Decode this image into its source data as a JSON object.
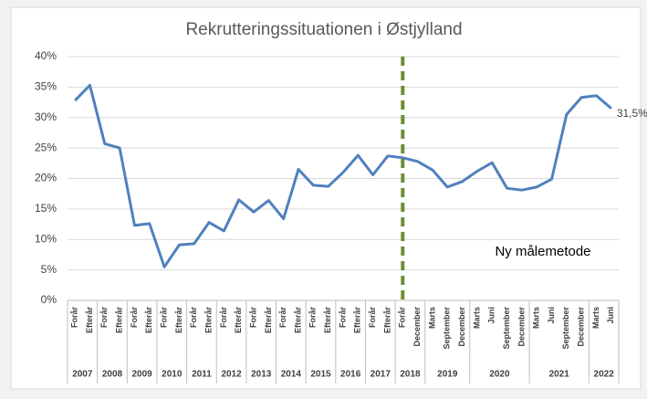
{
  "chart_data": {
    "type": "line",
    "title": "Rekrutteringssituationen i Østjylland",
    "groups": [
      {
        "name": "2007",
        "categories": [
          "Forår",
          "Efterår"
        ]
      },
      {
        "name": "2008",
        "categories": [
          "Forår",
          "Efterår"
        ]
      },
      {
        "name": "2009",
        "categories": [
          "Forår",
          "Efterår"
        ]
      },
      {
        "name": "2010",
        "categories": [
          "Forår",
          "Efterår"
        ]
      },
      {
        "name": "2011",
        "categories": [
          "Forår",
          "Efterår"
        ]
      },
      {
        "name": "2012",
        "categories": [
          "Forår",
          "Efterår"
        ]
      },
      {
        "name": "2013",
        "categories": [
          "Forår",
          "Efterår"
        ]
      },
      {
        "name": "2014",
        "categories": [
          "Forår",
          "Efterår"
        ]
      },
      {
        "name": "2015",
        "categories": [
          "Forår",
          "Efterår"
        ]
      },
      {
        "name": "2016",
        "categories": [
          "Forår",
          "Efterår"
        ]
      },
      {
        "name": "2017",
        "categories": [
          "Forår",
          "Efterår"
        ]
      },
      {
        "name": "2018",
        "categories": [
          "Forår",
          "December"
        ]
      },
      {
        "name": "2019",
        "categories": [
          "Marts",
          "September",
          "December"
        ]
      },
      {
        "name": "2020",
        "categories": [
          "Marts",
          "Juni",
          "September",
          "December"
        ]
      },
      {
        "name": "2021",
        "categories": [
          "Marts",
          "Juni",
          "September",
          "December"
        ]
      },
      {
        "name": "2022",
        "categories": [
          "Marts",
          "Juni"
        ]
      }
    ],
    "series": [
      {
        "color": "#4f81bd",
        "values": [
          32.8,
          35.3,
          25.7,
          25.0,
          12.3,
          12.6,
          5.5,
          9.1,
          9.3,
          12.8,
          11.4,
          16.5,
          14.5,
          16.4,
          13.4,
          21.5,
          18.9,
          18.7,
          21.0,
          23.8,
          20.6,
          23.7,
          23.4,
          22.8,
          21.4,
          18.6,
          19.5,
          21.2,
          22.6,
          18.4,
          18.1,
          18.6,
          19.9,
          30.5,
          33.3,
          33.6,
          31.5
        ],
        "value_labels": [
          null,
          null,
          null,
          null,
          null,
          null,
          null,
          null,
          null,
          null,
          null,
          null,
          null,
          null,
          null,
          null,
          null,
          null,
          null,
          null,
          null,
          null,
          null,
          null,
          null,
          null,
          null,
          null,
          null,
          null,
          null,
          null,
          null,
          null,
          null,
          null,
          "31,5%"
        ]
      }
    ],
    "ylim": [
      0,
      40
    ],
    "yticks": [
      {
        "value": 0,
        "label": "0%"
      },
      {
        "value": 5,
        "label": "5%"
      },
      {
        "value": 10,
        "label": "10%"
      },
      {
        "value": 15,
        "label": "15%"
      },
      {
        "value": 20,
        "label": "20%"
      },
      {
        "value": 25,
        "label": "25%"
      },
      {
        "value": 30,
        "label": "30%"
      },
      {
        "value": 35,
        "label": "35%"
      },
      {
        "value": 40,
        "label": "40%"
      }
    ],
    "grid": true,
    "vertical_line": {
      "category_index": 22,
      "color": "#6b8e35"
    },
    "annotations": [
      {
        "text": "Ny målemetode"
      }
    ]
  }
}
